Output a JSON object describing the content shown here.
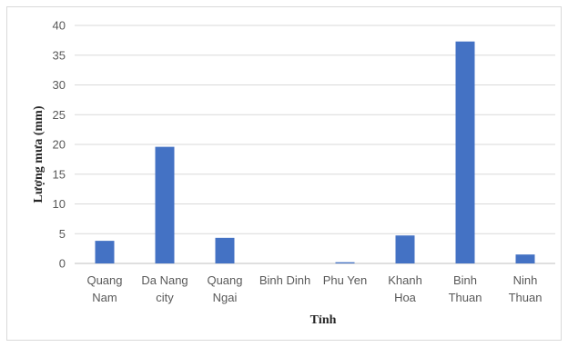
{
  "chart_data": {
    "type": "bar",
    "title": "",
    "xlabel": "Tỉnh",
    "ylabel": "Lượng mưa (mm)",
    "ylim": [
      0,
      40
    ],
    "yticks": [
      "0",
      "5",
      "10",
      "15",
      "20",
      "25",
      "30",
      "35",
      "40"
    ],
    "grid": true,
    "bar_color": "#4472C4",
    "categories": [
      [
        "Quang",
        "Nam"
      ],
      [
        "Da Nang",
        "city"
      ],
      [
        "Quang",
        "Ngai"
      ],
      [
        "Binh Dinh"
      ],
      [
        "Phu Yen"
      ],
      [
        "Khanh",
        "Hoa"
      ],
      [
        "Binh",
        "Thuan"
      ],
      [
        "Ninh",
        "Thuan"
      ]
    ],
    "values": [
      3.8,
      19.6,
      4.3,
      0.0,
      0.2,
      4.7,
      37.3,
      1.5
    ]
  }
}
